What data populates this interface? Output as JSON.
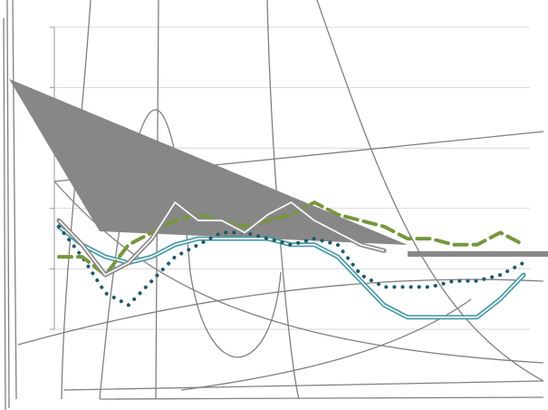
{
  "chart_data": {
    "type": "line",
    "categories": [
      null,
      null,
      null,
      null,
      null,
      null,
      null,
      null,
      null,
      null,
      null,
      null,
      null,
      null,
      null,
      null,
      null,
      null,
      null,
      null,
      null
    ],
    "series": [
      {
        "color": "#4a9aa8",
        "style": "double",
        "values": [
          1.7,
          1.4,
          1.2,
          1.1,
          1.2,
          1.4,
          1.5,
          1.5,
          1.5,
          1.5,
          1.4,
          1.4,
          1.2,
          0.8,
          0.4,
          0.2,
          0.2,
          0.2,
          0.2,
          0.5,
          0.9
        ]
      },
      {
        "color": "#1f5a6a",
        "style": "dotted",
        "values": [
          1.7,
          1.2,
          0.6,
          0.4,
          0.8,
          1.2,
          1.4,
          1.6,
          1.6,
          1.5,
          1.4,
          1.5,
          1.4,
          0.9,
          0.7,
          0.7,
          0.7,
          0.8,
          0.8,
          0.9,
          1.1
        ]
      },
      {
        "color": "#76963e",
        "style": "dashed",
        "values": [
          1.2,
          1.2,
          0.9,
          1.4,
          1.6,
          1.8,
          1.9,
          1.8,
          1.7,
          1.8,
          1.9,
          2.1,
          1.9,
          1.8,
          1.7,
          1.5,
          1.5,
          1.4,
          1.4,
          1.6,
          1.4
        ]
      },
      {
        "color": "#8a8a8a",
        "style": "double",
        "values": [
          1.8,
          1.4,
          0.9,
          1.1,
          1.5,
          2.1,
          1.8,
          1.8,
          1.6,
          1.9,
          2.1,
          1.8,
          1.6,
          1.4,
          1.3,
          null,
          null,
          null,
          null,
          null,
          null
        ]
      }
    ],
    "ylim": [
      0,
      5
    ],
    "yticks": [
      0,
      1,
      2,
      3,
      4,
      5
    ],
    "grid": true
  }
}
